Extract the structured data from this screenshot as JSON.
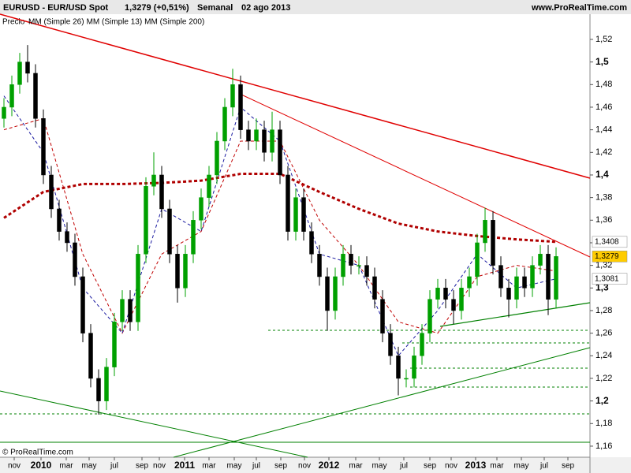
{
  "chart_data": {
    "type": "candlestick",
    "title": "EURUSD - EUR/USD Spot",
    "last": "1,3279 (+0,51%)",
    "period": "Semanal",
    "date": "02 ago 2013",
    "site": "www.ProRealTime.com",
    "copyright": "© ProRealTime.com",
    "price_label": "Precio",
    "up_color": "#00a000",
    "down_color": "#000000",
    "candles": [
      [
        1.45,
        1.468,
        1.442,
        1.46
      ],
      [
        1.46,
        1.488,
        1.452,
        1.48
      ],
      [
        1.48,
        1.508,
        1.472,
        1.5
      ],
      [
        1.5,
        1.515,
        1.482,
        1.49
      ],
      [
        1.49,
        1.498,
        1.442,
        1.45
      ],
      [
        1.45,
        1.458,
        1.392,
        1.4
      ],
      [
        1.4,
        1.408,
        1.362,
        1.37
      ],
      [
        1.37,
        1.378,
        1.342,
        1.35
      ],
      [
        1.35,
        1.358,
        1.332,
        1.34
      ],
      [
        1.34,
        1.348,
        1.302,
        1.31
      ],
      [
        1.31,
        1.318,
        1.252,
        1.26
      ],
      [
        1.26,
        1.268,
        1.212,
        1.22
      ],
      [
        1.22,
        1.228,
        1.188,
        1.2
      ],
      [
        1.2,
        1.238,
        1.192,
        1.23
      ],
      [
        1.23,
        1.278,
        1.222,
        1.27
      ],
      [
        1.27,
        1.298,
        1.262,
        1.29
      ],
      [
        1.29,
        1.298,
        1.262,
        1.27
      ],
      [
        1.27,
        1.338,
        1.262,
        1.33
      ],
      [
        1.33,
        1.398,
        1.322,
        1.39
      ],
      [
        1.39,
        1.42,
        1.382,
        1.4
      ],
      [
        1.4,
        1.408,
        1.362,
        1.37
      ],
      [
        1.37,
        1.378,
        1.322,
        1.33
      ],
      [
        1.33,
        1.338,
        1.287,
        1.3
      ],
      [
        1.3,
        1.338,
        1.292,
        1.33
      ],
      [
        1.33,
        1.368,
        1.322,
        1.36
      ],
      [
        1.36,
        1.388,
        1.352,
        1.38
      ],
      [
        1.38,
        1.408,
        1.372,
        1.4
      ],
      [
        1.4,
        1.438,
        1.392,
        1.43
      ],
      [
        1.43,
        1.468,
        1.422,
        1.46
      ],
      [
        1.46,
        1.494,
        1.452,
        1.48
      ],
      [
        1.48,
        1.488,
        1.432,
        1.44
      ],
      [
        1.44,
        1.448,
        1.422,
        1.43
      ],
      [
        1.43,
        1.45,
        1.422,
        1.44
      ],
      [
        1.44,
        1.448,
        1.412,
        1.42
      ],
      [
        1.42,
        1.456,
        1.412,
        1.44
      ],
      [
        1.44,
        1.448,
        1.392,
        1.4
      ],
      [
        1.4,
        1.408,
        1.342,
        1.35
      ],
      [
        1.35,
        1.388,
        1.342,
        1.38
      ],
      [
        1.38,
        1.388,
        1.342,
        1.35
      ],
      [
        1.35,
        1.358,
        1.322,
        1.33
      ],
      [
        1.33,
        1.338,
        1.302,
        1.31
      ],
      [
        1.31,
        1.318,
        1.262,
        1.28
      ],
      [
        1.28,
        1.318,
        1.272,
        1.31
      ],
      [
        1.31,
        1.338,
        1.302,
        1.33
      ],
      [
        1.33,
        1.338,
        1.312,
        1.32
      ],
      [
        1.32,
        1.328,
        1.312,
        1.32
      ],
      [
        1.32,
        1.328,
        1.302,
        1.31
      ],
      [
        1.31,
        1.318,
        1.282,
        1.29
      ],
      [
        1.29,
        1.298,
        1.252,
        1.26
      ],
      [
        1.26,
        1.268,
        1.232,
        1.24
      ],
      [
        1.24,
        1.248,
        1.205,
        1.22
      ],
      [
        1.22,
        1.228,
        1.212,
        1.22
      ],
      [
        1.22,
        1.248,
        1.212,
        1.24
      ],
      [
        1.24,
        1.268,
        1.232,
        1.26
      ],
      [
        1.26,
        1.298,
        1.252,
        1.29
      ],
      [
        1.29,
        1.308,
        1.282,
        1.3
      ],
      [
        1.3,
        1.308,
        1.282,
        1.29
      ],
      [
        1.29,
        1.298,
        1.268,
        1.28
      ],
      [
        1.28,
        1.308,
        1.272,
        1.3
      ],
      [
        1.3,
        1.318,
        1.292,
        1.31
      ],
      [
        1.31,
        1.348,
        1.302,
        1.34
      ],
      [
        1.34,
        1.371,
        1.332,
        1.36
      ],
      [
        1.36,
        1.368,
        1.312,
        1.32
      ],
      [
        1.32,
        1.328,
        1.292,
        1.3
      ],
      [
        1.3,
        1.308,
        1.274,
        1.29
      ],
      [
        1.29,
        1.318,
        1.282,
        1.31
      ],
      [
        1.31,
        1.318,
        1.292,
        1.3
      ],
      [
        1.3,
        1.328,
        1.292,
        1.32
      ],
      [
        1.32,
        1.338,
        1.312,
        1.33
      ],
      [
        1.33,
        1.338,
        1.276,
        1.29
      ],
      [
        1.29,
        1.336,
        1.282,
        1.3279
      ]
    ],
    "last_value_label": "1,3279",
    "ma_x": [
      0,
      5,
      10,
      15,
      20,
      25,
      30,
      35,
      40,
      45,
      50,
      55,
      60,
      65,
      70
    ],
    "series": [
      {
        "name": "MM (Simple 26)",
        "color": "#c00000",
        "width": 1,
        "values": [
          1.44,
          1.45,
          1.33,
          1.26,
          1.33,
          1.35,
          1.43,
          1.43,
          1.36,
          1.32,
          1.27,
          1.26,
          1.31,
          1.32,
          1.315
        ]
      },
      {
        "name": "MM (Simple 13)",
        "color": "#1a1aa0",
        "width": 1,
        "values": [
          1.47,
          1.42,
          1.3,
          1.26,
          1.37,
          1.35,
          1.46,
          1.43,
          1.33,
          1.32,
          1.24,
          1.28,
          1.33,
          1.3,
          1.3081
        ],
        "value_label": "1,3081"
      },
      {
        "name": "MM (Simple 200)",
        "color": "#b00000",
        "width": 3,
        "values": [
          1.362,
          1.385,
          1.392,
          1.392,
          1.393,
          1.395,
          1.401,
          1.401,
          1.385,
          1.37,
          1.357,
          1.35,
          1.346,
          1.343,
          1.3408
        ],
        "value_label": "1,3408"
      }
    ],
    "ylim": [
      1.1516,
      1.5444
    ],
    "yticks": [
      {
        "value": 1.16,
        "label": "1,16"
      },
      {
        "value": 1.18,
        "label": "1,18"
      },
      {
        "value": 1.2,
        "label": "1,2"
      },
      {
        "value": 1.22,
        "label": "1,22"
      },
      {
        "value": 1.24,
        "label": "1,24"
      },
      {
        "value": 1.26,
        "label": "1,26"
      },
      {
        "value": 1.28,
        "label": "1,28"
      },
      {
        "value": 1.3,
        "label": "1,3"
      },
      {
        "value": 1.32,
        "label": "1,32"
      },
      {
        "value": 1.34,
        "label": "1,34"
      },
      {
        "value": 1.36,
        "label": "1,36"
      },
      {
        "value": 1.38,
        "label": "1,38"
      },
      {
        "value": 1.4,
        "label": "1,4"
      },
      {
        "value": 1.42,
        "label": "1,42"
      },
      {
        "value": 1.44,
        "label": "1,44"
      },
      {
        "value": 1.46,
        "label": "1,46"
      },
      {
        "value": 1.48,
        "label": "1,48"
      },
      {
        "value": 1.5,
        "label": "1,5"
      },
      {
        "value": 1.52,
        "label": "1,52"
      }
    ],
    "xticks": [
      {
        "value": 1.3,
        "label": "nov"
      },
      {
        "value": 4.7,
        "label": "2010"
      },
      {
        "value": 7.9,
        "label": "mar"
      },
      {
        "value": 10.8,
        "label": "may"
      },
      {
        "value": 14,
        "label": "jul"
      },
      {
        "value": 17.5,
        "label": "sep"
      },
      {
        "value": 19.7,
        "label": "nov"
      },
      {
        "value": 22.9,
        "label": "2011"
      },
      {
        "value": 26,
        "label": "mar"
      },
      {
        "value": 29.2,
        "label": "may"
      },
      {
        "value": 32,
        "label": "jul"
      },
      {
        "value": 35.1,
        "label": "sep"
      },
      {
        "value": 38.1,
        "label": "nov"
      },
      {
        "value": 41.2,
        "label": "2012"
      },
      {
        "value": 44.6,
        "label": "mar"
      },
      {
        "value": 47.6,
        "label": "may"
      },
      {
        "value": 50.7,
        "label": "jul"
      },
      {
        "value": 54,
        "label": "sep"
      },
      {
        "value": 56.7,
        "label": "nov"
      },
      {
        "value": 59.8,
        "label": "2013"
      },
      {
        "value": 62.5,
        "label": "mar"
      },
      {
        "value": 65.6,
        "label": "may"
      },
      {
        "value": 68.5,
        "label": "jul"
      },
      {
        "value": 71.5,
        "label": "sep"
      }
    ]
  }
}
